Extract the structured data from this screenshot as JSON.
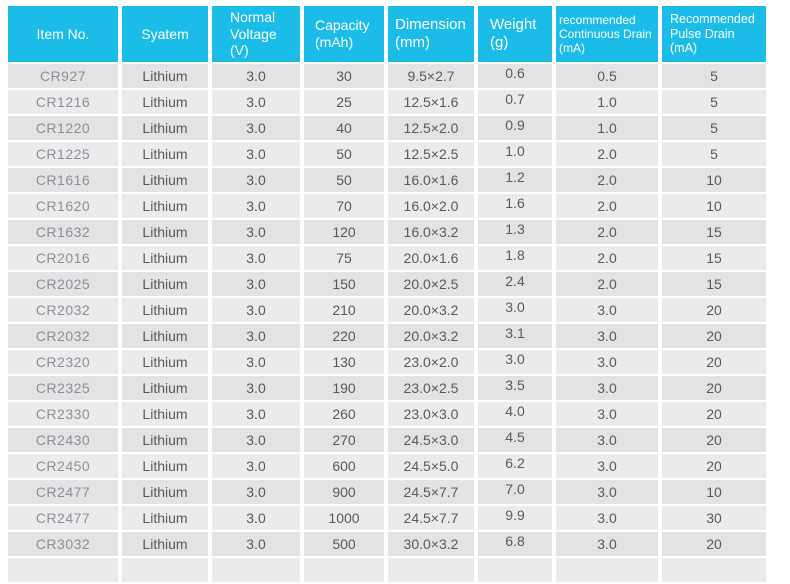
{
  "colors": {
    "header_bg": "#1bbde8",
    "header_text": "#ffffff",
    "row_odd": "#e2e3e5",
    "row_even": "#eaebed",
    "cell_text": "#58595b",
    "item_no_text": "#8c8e91"
  },
  "table": {
    "headers": [
      "Item No.",
      "Syatem",
      "Normal\nVoltage\n(V)",
      "Capacity\n(mAh)",
      "Dimension\n(mm)",
      "Weight\n(g)",
      "recommended\nContinuous Drain\n(mA)",
      "Recommended\nPulse Drain\n(mA)"
    ],
    "column_keys": [
      "item-no",
      "system",
      "normal-voltage",
      "capacity",
      "dimension",
      "weight",
      "continuous-drain",
      "pulse-drain"
    ],
    "rows": [
      [
        "CR927",
        "Lithium",
        "3.0",
        "30",
        "9.5×2.7",
        "0.6",
        "0.5",
        "5"
      ],
      [
        "CR1216",
        "Lithium",
        "3.0",
        "25",
        "12.5×1.6",
        "0.7",
        "1.0",
        "5"
      ],
      [
        "CR1220",
        "Lithium",
        "3.0",
        "40",
        "12.5×2.0",
        "0.9",
        "1.0",
        "5"
      ],
      [
        "CR1225",
        "Lithium",
        "3.0",
        "50",
        "12.5×2.5",
        "1.0",
        "2.0",
        "5"
      ],
      [
        "CR1616",
        "Lithium",
        "3.0",
        "50",
        "16.0×1.6",
        "1.2",
        "2.0",
        "10"
      ],
      [
        "CR1620",
        "Lithium",
        "3.0",
        "70",
        "16.0×2.0",
        "1.6",
        "2.0",
        "10"
      ],
      [
        "CR1632",
        "Lithium",
        "3.0",
        "120",
        "16.0×3.2",
        "1.3",
        "2.0",
        "15"
      ],
      [
        "CR2016",
        "Lithium",
        "3.0",
        "75",
        "20.0×1.6",
        "1.8",
        "2.0",
        "15"
      ],
      [
        "CR2025",
        "Lithium",
        "3.0",
        "150",
        "20.0×2.5",
        "2.4",
        "2.0",
        "15"
      ],
      [
        "CR2032",
        "Lithium",
        "3.0",
        "210",
        "20.0×3.2",
        "3.0",
        "3.0",
        "20"
      ],
      [
        "CR2032",
        "Lithium",
        "3.0",
        "220",
        "20.0×3.2",
        "3.1",
        "3.0",
        "20"
      ],
      [
        "CR2320",
        "Lithium",
        "3.0",
        "130",
        "23.0×2.0",
        "3.0",
        "3.0",
        "20"
      ],
      [
        "CR2325",
        "Lithium",
        "3.0",
        "190",
        "23.0×2.5",
        "3.5",
        "3.0",
        "20"
      ],
      [
        "CR2330",
        "Lithium",
        "3.0",
        "260",
        "23.0×3.0",
        "4.0",
        "3.0",
        "20"
      ],
      [
        "CR2430",
        "Lithium",
        "3.0",
        "270",
        "24.5×3.0",
        "4.5",
        "3.0",
        "20"
      ],
      [
        "CR2450",
        "Lithium",
        "3.0",
        "600",
        "24.5×5.0",
        "6.2",
        "3.0",
        "20"
      ],
      [
        "CR2477",
        "Lithium",
        "3.0",
        "900",
        "24.5×7.7",
        "7.0",
        "3.0",
        "10"
      ],
      [
        "CR2477",
        "Lithium",
        "3.0",
        "1000",
        "24.5×7.7",
        "9.9",
        "3.0",
        "30"
      ],
      [
        "CR3032",
        "Lithium",
        "3.0",
        "500",
        "30.0×3.2",
        "6.8",
        "3.0",
        "20"
      ]
    ],
    "partial_next_row": true
  }
}
